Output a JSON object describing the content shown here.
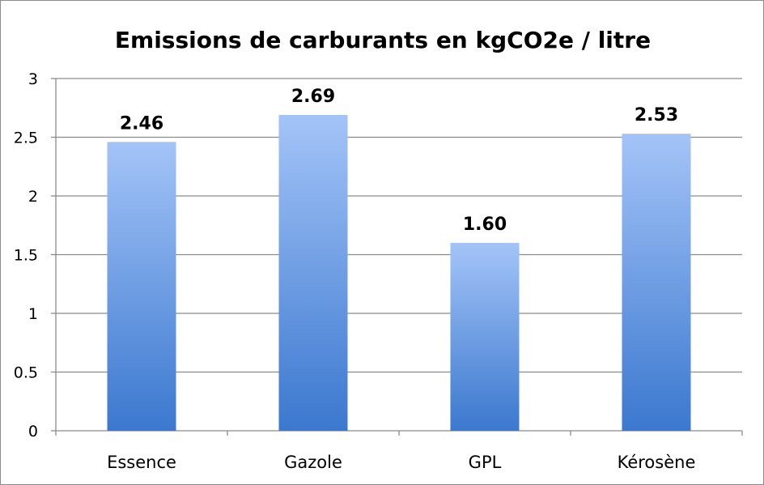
{
  "chart_data": {
    "type": "bar",
    "title": "Emissions de carburants en kgCO2e / litre",
    "xlabel": "",
    "ylabel": "",
    "categories": [
      "Essence",
      "Gazole",
      "GPL",
      "Kérosène"
    ],
    "values": [
      2.46,
      2.69,
      1.6,
      2.53
    ],
    "data_labels": [
      "2.46",
      "2.69",
      "1.60",
      "2.53"
    ],
    "ylim": [
      0,
      3
    ],
    "yticks": [
      0,
      0.5,
      1,
      1.5,
      2,
      2.5,
      3
    ],
    "ytick_labels": [
      "0",
      "0.5",
      "1",
      "1.5",
      "2",
      "2.5",
      "3"
    ],
    "grid": true,
    "legend": "none",
    "colors": {
      "bar_top": "#a4c4f8",
      "bar_bottom": "#3b78cf",
      "grid": "#8a8a8a",
      "axis": "#8a8a8a"
    }
  }
}
